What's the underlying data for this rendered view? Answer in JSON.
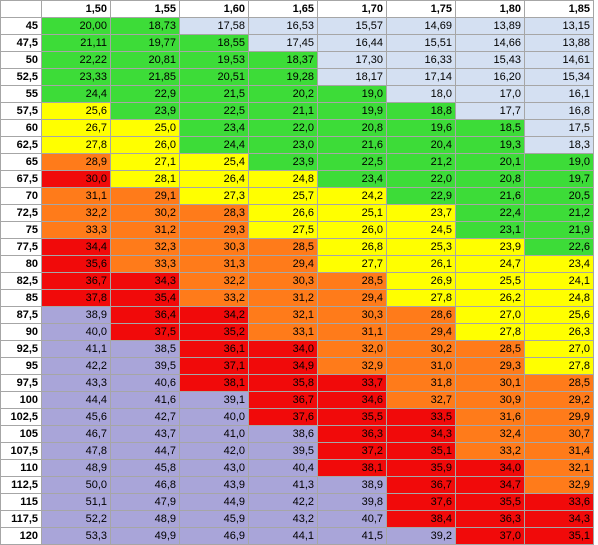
{
  "table": {
    "colors": {
      "green": "#3ddc38",
      "blue": "#d4e0f2",
      "yellow": "#ffff00",
      "orange": "#ff7b1a",
      "red": "#f10a0a",
      "purple": "#a9a5d9"
    },
    "headers": [
      "1,50",
      "1,55",
      "1,60",
      "1,65",
      "1,70",
      "1,75",
      "1,80",
      "1,85"
    ],
    "rows": [
      {
        "label": "45",
        "values": [
          "20,00",
          "18,73",
          "17,58",
          "16,53",
          "15,57",
          "14,69",
          "13,89",
          "13,15"
        ],
        "colors": [
          "green",
          "green",
          "blue",
          "blue",
          "blue",
          "blue",
          "blue",
          "blue"
        ]
      },
      {
        "label": "47,5",
        "values": [
          "21,11",
          "19,77",
          "18,55",
          "17,45",
          "16,44",
          "15,51",
          "14,66",
          "13,88"
        ],
        "colors": [
          "green",
          "green",
          "green",
          "blue",
          "blue",
          "blue",
          "blue",
          "blue"
        ]
      },
      {
        "label": "50",
        "values": [
          "22,22",
          "20,81",
          "19,53",
          "18,37",
          "17,30",
          "16,33",
          "15,43",
          "14,61"
        ],
        "colors": [
          "green",
          "green",
          "green",
          "green",
          "blue",
          "blue",
          "blue",
          "blue"
        ]
      },
      {
        "label": "52,5",
        "values": [
          "23,33",
          "21,85",
          "20,51",
          "19,28",
          "18,17",
          "17,14",
          "16,20",
          "15,34"
        ],
        "colors": [
          "green",
          "green",
          "green",
          "green",
          "blue",
          "blue",
          "blue",
          "blue"
        ]
      },
      {
        "label": "55",
        "values": [
          "24,4",
          "22,9",
          "21,5",
          "20,2",
          "19,0",
          "18,0",
          "17,0",
          "16,1"
        ],
        "colors": [
          "green",
          "green",
          "green",
          "green",
          "green",
          "blue",
          "blue",
          "blue"
        ]
      },
      {
        "label": "57,5",
        "values": [
          "25,6",
          "23,9",
          "22,5",
          "21,1",
          "19,9",
          "18,8",
          "17,7",
          "16,8"
        ],
        "colors": [
          "yellow",
          "green",
          "green",
          "green",
          "green",
          "green",
          "blue",
          "blue"
        ]
      },
      {
        "label": "60",
        "values": [
          "26,7",
          "25,0",
          "23,4",
          "22,0",
          "20,8",
          "19,6",
          "18,5",
          "17,5"
        ],
        "colors": [
          "yellow",
          "yellow",
          "green",
          "green",
          "green",
          "green",
          "green",
          "blue"
        ]
      },
      {
        "label": "62,5",
        "values": [
          "27,8",
          "26,0",
          "24,4",
          "23,0",
          "21,6",
          "20,4",
          "19,3",
          "18,3"
        ],
        "colors": [
          "yellow",
          "yellow",
          "green",
          "green",
          "green",
          "green",
          "green",
          "blue"
        ]
      },
      {
        "label": "65",
        "values": [
          "28,9",
          "27,1",
          "25,4",
          "23,9",
          "22,5",
          "21,2",
          "20,1",
          "19,0"
        ],
        "colors": [
          "orange",
          "yellow",
          "yellow",
          "green",
          "green",
          "green",
          "green",
          "green"
        ]
      },
      {
        "label": "67,5",
        "values": [
          "30,0",
          "28,1",
          "26,4",
          "24,8",
          "23,4",
          "22,0",
          "20,8",
          "19,7"
        ],
        "colors": [
          "red",
          "yellow",
          "yellow",
          "yellow",
          "green",
          "green",
          "green",
          "green"
        ]
      },
      {
        "label": "70",
        "values": [
          "31,1",
          "29,1",
          "27,3",
          "25,7",
          "24,2",
          "22,9",
          "21,6",
          "20,5"
        ],
        "colors": [
          "orange",
          "orange",
          "yellow",
          "yellow",
          "yellow",
          "green",
          "green",
          "green"
        ]
      },
      {
        "label": "72,5",
        "values": [
          "32,2",
          "30,2",
          "28,3",
          "26,6",
          "25,1",
          "23,7",
          "22,4",
          "21,2"
        ],
        "colors": [
          "orange",
          "orange",
          "orange",
          "yellow",
          "yellow",
          "yellow",
          "green",
          "green"
        ]
      },
      {
        "label": "75",
        "values": [
          "33,3",
          "31,2",
          "29,3",
          "27,5",
          "26,0",
          "24,5",
          "23,1",
          "21,9"
        ],
        "colors": [
          "orange",
          "orange",
          "orange",
          "yellow",
          "yellow",
          "yellow",
          "green",
          "green"
        ]
      },
      {
        "label": "77,5",
        "values": [
          "34,4",
          "32,3",
          "30,3",
          "28,5",
          "26,8",
          "25,3",
          "23,9",
          "22,6"
        ],
        "colors": [
          "red",
          "orange",
          "orange",
          "orange",
          "yellow",
          "yellow",
          "yellow",
          "green"
        ]
      },
      {
        "label": "80",
        "values": [
          "35,6",
          "33,3",
          "31,3",
          "29,4",
          "27,7",
          "26,1",
          "24,7",
          "23,4"
        ],
        "colors": [
          "red",
          "orange",
          "orange",
          "orange",
          "yellow",
          "yellow",
          "yellow",
          "yellow"
        ]
      },
      {
        "label": "82,5",
        "values": [
          "36,7",
          "34,3",
          "32,2",
          "30,3",
          "28,5",
          "26,9",
          "25,5",
          "24,1"
        ],
        "colors": [
          "red",
          "red",
          "orange",
          "orange",
          "orange",
          "yellow",
          "yellow",
          "yellow"
        ]
      },
      {
        "label": "85",
        "values": [
          "37,8",
          "35,4",
          "33,2",
          "31,2",
          "29,4",
          "27,8",
          "26,2",
          "24,8"
        ],
        "colors": [
          "red",
          "red",
          "orange",
          "orange",
          "orange",
          "yellow",
          "yellow",
          "yellow"
        ]
      },
      {
        "label": "87,5",
        "values": [
          "38,9",
          "36,4",
          "34,2",
          "32,1",
          "30,3",
          "28,6",
          "27,0",
          "25,6"
        ],
        "colors": [
          "purple",
          "red",
          "red",
          "orange",
          "orange",
          "orange",
          "yellow",
          "yellow"
        ]
      },
      {
        "label": "90",
        "values": [
          "40,0",
          "37,5",
          "35,2",
          "33,1",
          "31,1",
          "29,4",
          "27,8",
          "26,3"
        ],
        "colors": [
          "purple",
          "red",
          "red",
          "orange",
          "orange",
          "orange",
          "yellow",
          "yellow"
        ]
      },
      {
        "label": "92,5",
        "values": [
          "41,1",
          "38,5",
          "36,1",
          "34,0",
          "32,0",
          "30,2",
          "28,5",
          "27,0"
        ],
        "colors": [
          "purple",
          "purple",
          "red",
          "red",
          "orange",
          "orange",
          "orange",
          "yellow"
        ]
      },
      {
        "label": "95",
        "values": [
          "42,2",
          "39,5",
          "37,1",
          "34,9",
          "32,9",
          "31,0",
          "29,3",
          "27,8"
        ],
        "colors": [
          "purple",
          "purple",
          "red",
          "red",
          "orange",
          "orange",
          "orange",
          "yellow"
        ]
      },
      {
        "label": "97,5",
        "values": [
          "43,3",
          "40,6",
          "38,1",
          "35,8",
          "33,7",
          "31,8",
          "30,1",
          "28,5"
        ],
        "colors": [
          "purple",
          "purple",
          "red",
          "red",
          "red",
          "orange",
          "orange",
          "orange"
        ]
      },
      {
        "label": "100",
        "values": [
          "44,4",
          "41,6",
          "39,1",
          "36,7",
          "34,6",
          "32,7",
          "30,9",
          "29,2"
        ],
        "colors": [
          "purple",
          "purple",
          "purple",
          "red",
          "red",
          "orange",
          "orange",
          "orange"
        ]
      },
      {
        "label": "102,5",
        "values": [
          "45,6",
          "42,7",
          "40,0",
          "37,6",
          "35,5",
          "33,5",
          "31,6",
          "29,9"
        ],
        "colors": [
          "purple",
          "purple",
          "purple",
          "red",
          "red",
          "red",
          "orange",
          "orange"
        ]
      },
      {
        "label": "105",
        "values": [
          "46,7",
          "43,7",
          "41,0",
          "38,6",
          "36,3",
          "34,3",
          "32,4",
          "30,7"
        ],
        "colors": [
          "purple",
          "purple",
          "purple",
          "purple",
          "red",
          "red",
          "orange",
          "orange"
        ]
      },
      {
        "label": "107,5",
        "values": [
          "47,8",
          "44,7",
          "42,0",
          "39,5",
          "37,2",
          "35,1",
          "33,2",
          "31,4"
        ],
        "colors": [
          "purple",
          "purple",
          "purple",
          "purple",
          "red",
          "red",
          "orange",
          "orange"
        ]
      },
      {
        "label": "110",
        "values": [
          "48,9",
          "45,8",
          "43,0",
          "40,4",
          "38,1",
          "35,9",
          "34,0",
          "32,1"
        ],
        "colors": [
          "purple",
          "purple",
          "purple",
          "purple",
          "red",
          "red",
          "red",
          "orange"
        ]
      },
      {
        "label": "112,5",
        "values": [
          "50,0",
          "46,8",
          "43,9",
          "41,3",
          "38,9",
          "36,7",
          "34,7",
          "32,9"
        ],
        "colors": [
          "purple",
          "purple",
          "purple",
          "purple",
          "purple",
          "red",
          "red",
          "orange"
        ]
      },
      {
        "label": "115",
        "values": [
          "51,1",
          "47,9",
          "44,9",
          "42,2",
          "39,8",
          "37,6",
          "35,5",
          "33,6"
        ],
        "colors": [
          "purple",
          "purple",
          "purple",
          "purple",
          "purple",
          "red",
          "red",
          "red"
        ]
      },
      {
        "label": "117,5",
        "values": [
          "52,2",
          "48,9",
          "45,9",
          "43,2",
          "40,7",
          "38,4",
          "36,3",
          "34,3"
        ],
        "colors": [
          "purple",
          "purple",
          "purple",
          "purple",
          "purple",
          "red",
          "red",
          "red"
        ]
      },
      {
        "label": "120",
        "values": [
          "53,3",
          "49,9",
          "46,9",
          "44,1",
          "41,5",
          "39,2",
          "37,0",
          "35,1"
        ],
        "colors": [
          "purple",
          "purple",
          "purple",
          "purple",
          "purple",
          "purple",
          "red",
          "red"
        ]
      }
    ]
  }
}
